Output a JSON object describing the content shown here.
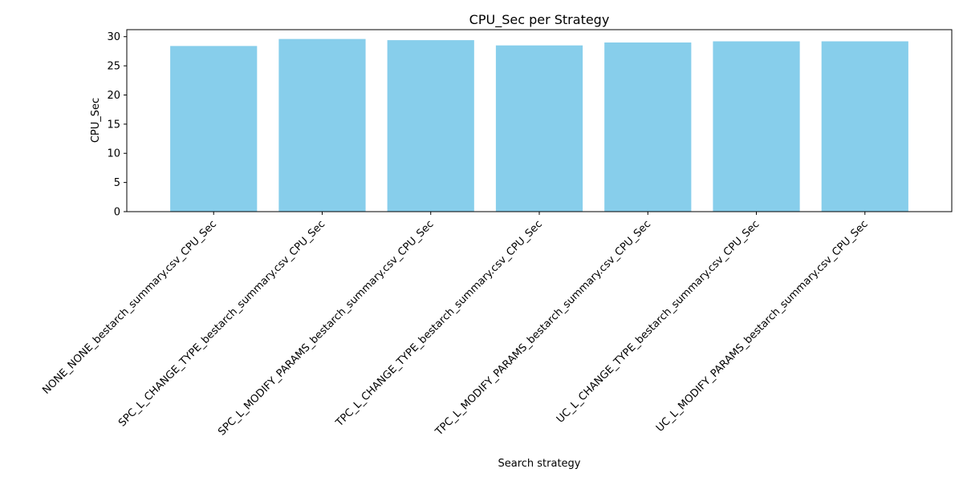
{
  "chart_data": {
    "type": "bar",
    "title": "CPU_Sec per Strategy",
    "xlabel": "Search strategy",
    "ylabel": "CPU_Sec",
    "categories": [
      "NONE_NONE_bestarch_summary.csv_CPU_Sec",
      "SPC_L_CHANGE_TYPE_bestarch_summary.csv_CPU_Sec",
      "SPC_L_MODIFY_PARAMS_bestarch_summary.csv_CPU_Sec",
      "TPC_L_CHANGE_TYPE_bestarch_summary.csv_CPU_Sec",
      "TPC_L_MODIFY_PARAMS_bestarch_summary.csv_CPU_Sec",
      "UC_L_CHANGE_TYPE_bestarch_summary.csv_CPU_Sec",
      "UC_L_MODIFY_PARAMS_bestarch_summary.csv_CPU_Sec"
    ],
    "values": [
      28.4,
      29.6,
      29.4,
      28.5,
      29.0,
      29.2,
      29.2
    ],
    "ylim": [
      0,
      31.2
    ],
    "yticks": [
      0,
      5,
      10,
      15,
      20,
      25,
      30
    ],
    "grid": false,
    "bar_color": "#87CEEB"
  }
}
